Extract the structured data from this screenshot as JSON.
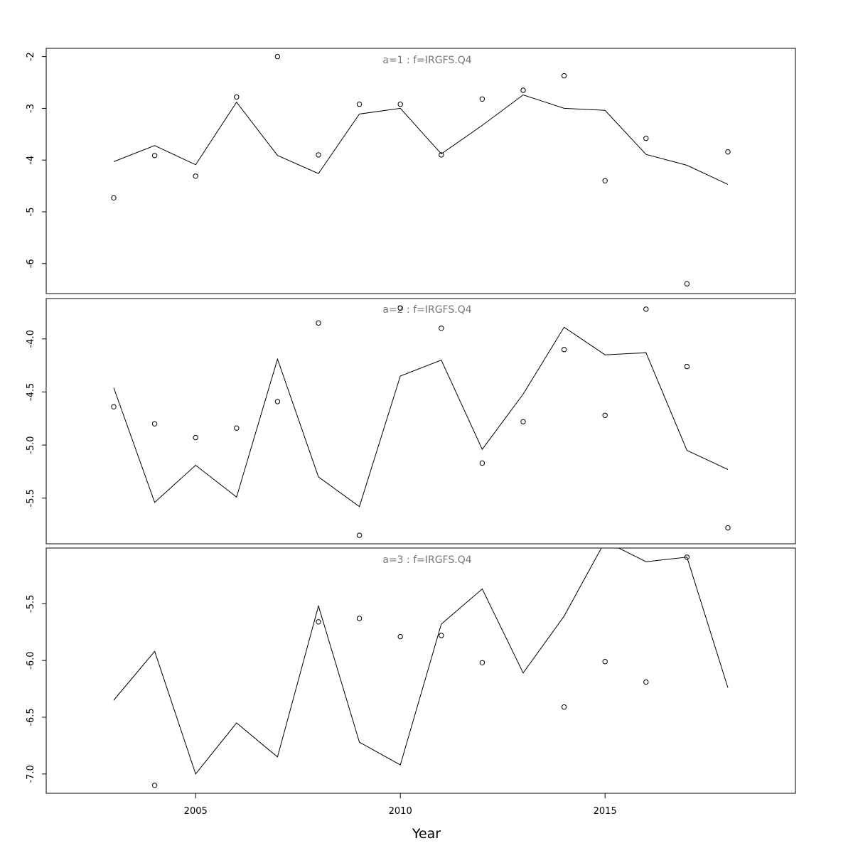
{
  "chart_data": {
    "type": "line",
    "xlabel": "Year",
    "x": [
      2003,
      2004,
      2005,
      2006,
      2007,
      2008,
      2009,
      2010,
      2011,
      2012,
      2013,
      2014,
      2015,
      2016,
      2017,
      2018
    ],
    "xlim": [
      2001.35,
      2019.65
    ],
    "x_ticks": [
      2005,
      2010,
      2015
    ],
    "grid": false,
    "legend": "none",
    "panels": [
      {
        "title": "a=1  :  f=IRGFS.Q4",
        "ylim": [
          -6.58,
          -1.84
        ],
        "y_ticks": [
          -2,
          -3,
          -4,
          -5,
          -6
        ],
        "y_tick_labels": [
          "-2",
          "-3",
          "-4",
          "-5",
          "-6"
        ],
        "line": [
          -4.03,
          -3.72,
          -4.09,
          -2.88,
          -3.91,
          -4.26,
          -3.11,
          -3.0,
          -3.88,
          -3.33,
          -2.74,
          -3.0,
          -3.04,
          -3.89,
          -4.1,
          -4.47
        ],
        "points": [
          -4.73,
          -3.91,
          -4.31,
          -2.78,
          -2.0,
          -3.9,
          -2.92,
          -2.92,
          -3.9,
          -2.82,
          -2.65,
          -2.37,
          -4.4,
          -3.58,
          -6.39,
          -3.84
        ]
      },
      {
        "title": "a=2  :  f=IRGFS.Q4",
        "ylim": [
          -5.93,
          -3.62
        ],
        "y_ticks": [
          -4.0,
          -4.5,
          -5.0,
          -5.5
        ],
        "y_tick_labels": [
          "-4.0",
          "-4.5",
          "-5.0",
          "-5.5"
        ],
        "line": [
          -4.46,
          -5.54,
          -5.19,
          -5.49,
          -4.19,
          -5.3,
          -5.58,
          -4.35,
          -4.2,
          -5.04,
          -4.52,
          -3.89,
          -4.15,
          -4.13,
          -5.05,
          -5.23
        ],
        "points": [
          -4.64,
          -4.8,
          -4.93,
          -4.84,
          -4.59,
          -3.85,
          -5.85,
          -3.71,
          -3.9,
          -5.17,
          -4.78,
          -4.1,
          -4.72,
          -3.72,
          -4.26,
          -5.78
        ]
      },
      {
        "title": "a=3  :  f=IRGFS.Q4",
        "ylim": [
          -7.17,
          -5.01
        ],
        "y_ticks": [
          -5.5,
          -6.0,
          -6.5,
          -7.0
        ],
        "y_tick_labels": [
          "-5.5",
          "-6.0",
          "-6.5",
          "-7.0"
        ],
        "line": [
          -6.35,
          -5.92,
          -7.0,
          -6.55,
          -6.85,
          -5.52,
          -6.72,
          -6.92,
          -5.68,
          -5.37,
          -6.11,
          -5.61,
          -4.95,
          -5.13,
          -5.09,
          -6.24
        ],
        "points": [
          null,
          -7.1,
          null,
          null,
          null,
          -5.66,
          -5.63,
          -5.79,
          -5.78,
          -6.02,
          null,
          -6.41,
          -6.01,
          -6.19,
          -5.09,
          null
        ]
      }
    ]
  }
}
